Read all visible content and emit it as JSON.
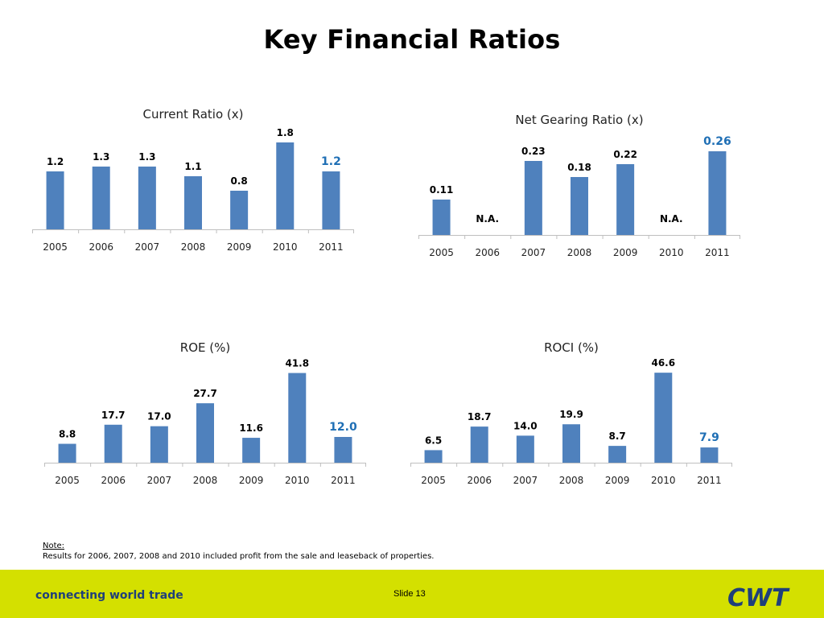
{
  "page": {
    "title": "Key Financial Ratios",
    "note_label": "Note:",
    "note_text": "Results for 2006, 2007, 2008 and 2010 included profit from the sale and leaseback of properties.",
    "tagline": "connecting world trade",
    "slide": "Slide 13",
    "logo_text": "CWT"
  },
  "colors": {
    "bar": "#4f81bd",
    "highlight_label": "#1f6fb5",
    "footer": "#d4e000",
    "tagline": "#1f3f7a"
  },
  "chart_data": [
    {
      "type": "bar",
      "title": "Current Ratio (x)",
      "categories": [
        "2005",
        "2006",
        "2007",
        "2008",
        "2009",
        "2010",
        "2011"
      ],
      "values": [
        1.2,
        1.3,
        1.3,
        1.1,
        0.8,
        1.8,
        1.2
      ],
      "labels": [
        "1.2",
        "1.3",
        "1.3",
        "1.1",
        "0.8",
        "1.8",
        "1.2"
      ],
      "highlight_index": 6,
      "ylim": [
        0,
        2.0
      ],
      "grid": false
    },
    {
      "type": "bar",
      "title": "Net Gearing Ratio (x)",
      "categories": [
        "2005",
        "2006",
        "2007",
        "2008",
        "2009",
        "2010",
        "2011"
      ],
      "values": [
        0.11,
        null,
        0.23,
        0.18,
        0.22,
        null,
        0.26
      ],
      "labels": [
        "0.11",
        "N.A.",
        "0.23",
        "0.18",
        "0.22",
        "N.A.",
        "0.26"
      ],
      "highlight_index": 6,
      "ylim": [
        0,
        0.3
      ],
      "grid": false
    },
    {
      "type": "bar",
      "title": "ROE (%)",
      "categories": [
        "2005",
        "2006",
        "2007",
        "2008",
        "2009",
        "2010",
        "2011"
      ],
      "values": [
        8.8,
        17.7,
        17.0,
        27.7,
        11.6,
        41.8,
        12.0
      ],
      "labels": [
        "8.8",
        "17.7",
        "17.0",
        "27.7",
        "11.6",
        "41.8",
        "12.0"
      ],
      "highlight_index": 6,
      "ylim": [
        0,
        45
      ],
      "grid": false
    },
    {
      "type": "bar",
      "title": "ROCI (%)",
      "categories": [
        "2005",
        "2006",
        "2007",
        "2008",
        "2009",
        "2010",
        "2011"
      ],
      "values": [
        6.5,
        18.7,
        14.0,
        19.9,
        8.7,
        46.6,
        7.9
      ],
      "labels": [
        "6.5",
        "18.7",
        "14.0",
        "19.9",
        "8.7",
        "46.6",
        "7.9"
      ],
      "highlight_index": 6,
      "ylim": [
        0,
        50
      ],
      "grid": false
    }
  ]
}
